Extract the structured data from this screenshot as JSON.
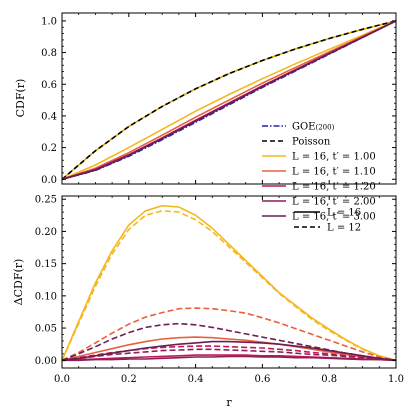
{
  "chart_data": [
    {
      "type": "line",
      "ylabel": "CDF(r)",
      "xlim": [
        0,
        1
      ],
      "ylim": [
        -0.03,
        1.05
      ],
      "xticks": [
        0.0,
        0.2,
        0.4,
        0.6,
        0.8,
        1.0
      ],
      "yticks": [
        0.0,
        0.2,
        0.4,
        0.6,
        0.8,
        1.0
      ],
      "xtick_labels_shown": false,
      "legend_position": "bottom-right",
      "x": [
        0.0,
        0.1,
        0.2,
        0.3,
        0.4,
        0.5,
        0.6,
        0.7,
        0.8,
        0.9,
        1.0
      ],
      "series": [
        {
          "name": "GOE(200)",
          "legend_label": "GOE",
          "legend_sub": "(200)",
          "color": "#1f1fbf",
          "style": "dashdot",
          "values": [
            0.0,
            0.055,
            0.145,
            0.25,
            0.36,
            0.47,
            0.58,
            0.685,
            0.79,
            0.895,
            1.0
          ]
        },
        {
          "name": "Poisson",
          "legend_label": "Poisson",
          "color": "#d4b106",
          "dash_color": "#000000",
          "style": "dashed",
          "values": [
            0.0,
            0.18,
            0.333,
            0.46,
            0.571,
            0.667,
            0.75,
            0.824,
            0.889,
            0.947,
            1.0
          ]
        },
        {
          "name": "L = 16, t′ = 1.00",
          "legend_label": "L = 16, t′ = 1.00",
          "color": "#f4b81e",
          "style": "solid",
          "values": [
            0.0,
            0.09,
            0.2,
            0.315,
            0.43,
            0.535,
            0.635,
            0.73,
            0.82,
            0.91,
            1.0
          ]
        },
        {
          "name": "L = 16, t′ = 1.10",
          "legend_label": "L = 16, t′ = 1.10",
          "color": "#e8603c",
          "style": "solid",
          "values": [
            0.0,
            0.07,
            0.168,
            0.278,
            0.392,
            0.5,
            0.607,
            0.707,
            0.805,
            0.902,
            1.0
          ]
        },
        {
          "name": "L = 16, t′ = 1.20",
          "legend_label": "L = 16, t′ = 1.20",
          "color": "#c2175c",
          "style": "solid",
          "values": [
            0.0,
            0.062,
            0.155,
            0.262,
            0.373,
            0.482,
            0.59,
            0.693,
            0.796,
            0.898,
            1.0
          ]
        },
        {
          "name": "L = 16, t′ = 2.00",
          "legend_label": "L = 16, t′ = 2.00",
          "color": "#8c1f55",
          "style": "solid",
          "values": [
            0.0,
            0.06,
            0.152,
            0.258,
            0.368,
            0.478,
            0.587,
            0.69,
            0.794,
            0.897,
            1.0
          ]
        },
        {
          "name": "L = 16, t′ = 3.00",
          "legend_label": "L = 16, t′ = 3.00",
          "color": "#6a1f52",
          "style": "solid",
          "values": [
            0.0,
            0.058,
            0.15,
            0.256,
            0.366,
            0.476,
            0.585,
            0.689,
            0.793,
            0.896,
            1.0
          ]
        }
      ]
    },
    {
      "type": "line",
      "xlabel": "r",
      "ylabel": "ΔCDF(r)",
      "xlim": [
        0,
        1
      ],
      "ylim": [
        -0.012,
        0.255
      ],
      "xticks": [
        0.0,
        0.2,
        0.4,
        0.6,
        0.8,
        1.0
      ],
      "yticks": [
        0.0,
        0.05,
        0.1,
        0.15,
        0.2,
        0.25
      ],
      "legend_position": "top-right",
      "legend": [
        {
          "label": "L = 16",
          "style": "solid"
        },
        {
          "label": "L = 12",
          "style": "dashed"
        }
      ],
      "x": [
        0.0,
        0.05,
        0.1,
        0.15,
        0.2,
        0.25,
        0.3,
        0.35,
        0.4,
        0.45,
        0.5,
        0.55,
        0.6,
        0.65,
        0.7,
        0.75,
        0.8,
        0.85,
        0.9,
        0.95,
        1.0
      ],
      "series": [
        {
          "name": "L = 16, t′ = 1.00",
          "color": "#f4b81e",
          "style": "solid",
          "values": [
            0.0,
            0.06,
            0.12,
            0.17,
            0.21,
            0.232,
            0.24,
            0.238,
            0.225,
            0.205,
            0.18,
            0.155,
            0.13,
            0.105,
            0.085,
            0.065,
            0.048,
            0.032,
            0.018,
            0.007,
            0.0
          ]
        },
        {
          "name": "L = 12, t′ = 1.00",
          "color": "#f4b81e",
          "style": "dashed",
          "values": [
            0.0,
            0.057,
            0.115,
            0.165,
            0.203,
            0.225,
            0.232,
            0.23,
            0.218,
            0.2,
            0.176,
            0.152,
            0.128,
            0.104,
            0.083,
            0.063,
            0.046,
            0.031,
            0.017,
            0.006,
            0.0
          ]
        },
        {
          "name": "L = 16, t′ = 1.10",
          "color": "#e8603c",
          "style": "solid",
          "values": [
            0.0,
            0.006,
            0.012,
            0.018,
            0.024,
            0.029,
            0.033,
            0.035,
            0.036,
            0.035,
            0.033,
            0.031,
            0.028,
            0.025,
            0.021,
            0.017,
            0.013,
            0.009,
            0.005,
            0.002,
            0.0
          ]
        },
        {
          "name": "L = 12, t′ = 1.10",
          "color": "#e8603c",
          "style": "dashed",
          "values": [
            0.0,
            0.012,
            0.027,
            0.042,
            0.056,
            0.067,
            0.074,
            0.08,
            0.081,
            0.08,
            0.077,
            0.073,
            0.066,
            0.058,
            0.049,
            0.04,
            0.031,
            0.022,
            0.013,
            0.005,
            0.0
          ]
        },
        {
          "name": "L = 16, t′ = 1.20",
          "color": "#c2175c",
          "style": "solid",
          "values": [
            0.0,
            0.001,
            0.002,
            0.003,
            0.004,
            0.005,
            0.006,
            0.007,
            0.008,
            0.008,
            0.008,
            0.008,
            0.007,
            0.007,
            0.006,
            0.005,
            0.004,
            0.003,
            0.002,
            0.001,
            0.0
          ]
        },
        {
          "name": "L = 12, t′ = 1.20",
          "color": "#c2175c",
          "style": "dashed",
          "values": [
            0.0,
            0.004,
            0.008,
            0.012,
            0.015,
            0.018,
            0.02,
            0.021,
            0.022,
            0.022,
            0.021,
            0.02,
            0.019,
            0.017,
            0.015,
            0.012,
            0.01,
            0.007,
            0.004,
            0.002,
            0.0
          ]
        },
        {
          "name": "L = 16, t′ = 2.00",
          "color": "#8c1f55",
          "style": "solid",
          "values": [
            0.0,
            0.0,
            0.001,
            0.001,
            0.002,
            0.002,
            0.003,
            0.004,
            0.005,
            0.005,
            0.006,
            0.006,
            0.005,
            0.005,
            0.004,
            0.004,
            0.003,
            0.002,
            0.001,
            0.001,
            0.0
          ]
        },
        {
          "name": "L = 12, t′ = 2.00",
          "color": "#8c1f55",
          "style": "dashed",
          "values": [
            0.0,
            0.003,
            0.006,
            0.009,
            0.011,
            0.013,
            0.015,
            0.016,
            0.017,
            0.017,
            0.016,
            0.015,
            0.014,
            0.013,
            0.011,
            0.009,
            0.008,
            0.006,
            0.004,
            0.002,
            0.0
          ]
        },
        {
          "name": "L = 16, t′ = 3.00",
          "color": "#6a1f52",
          "style": "solid",
          "values": [
            0.0,
            0.003,
            0.007,
            0.011,
            0.015,
            0.019,
            0.022,
            0.025,
            0.027,
            0.029,
            0.029,
            0.028,
            0.027,
            0.025,
            0.022,
            0.019,
            0.015,
            0.011,
            0.007,
            0.003,
            0.0
          ]
        },
        {
          "name": "L = 12, t′ = 3.00",
          "color": "#6a1f52",
          "style": "dashed",
          "values": [
            0.0,
            0.01,
            0.021,
            0.033,
            0.043,
            0.051,
            0.055,
            0.057,
            0.055,
            0.051,
            0.046,
            0.041,
            0.036,
            0.031,
            0.026,
            0.021,
            0.016,
            0.011,
            0.007,
            0.003,
            0.0
          ]
        }
      ]
    }
  ]
}
